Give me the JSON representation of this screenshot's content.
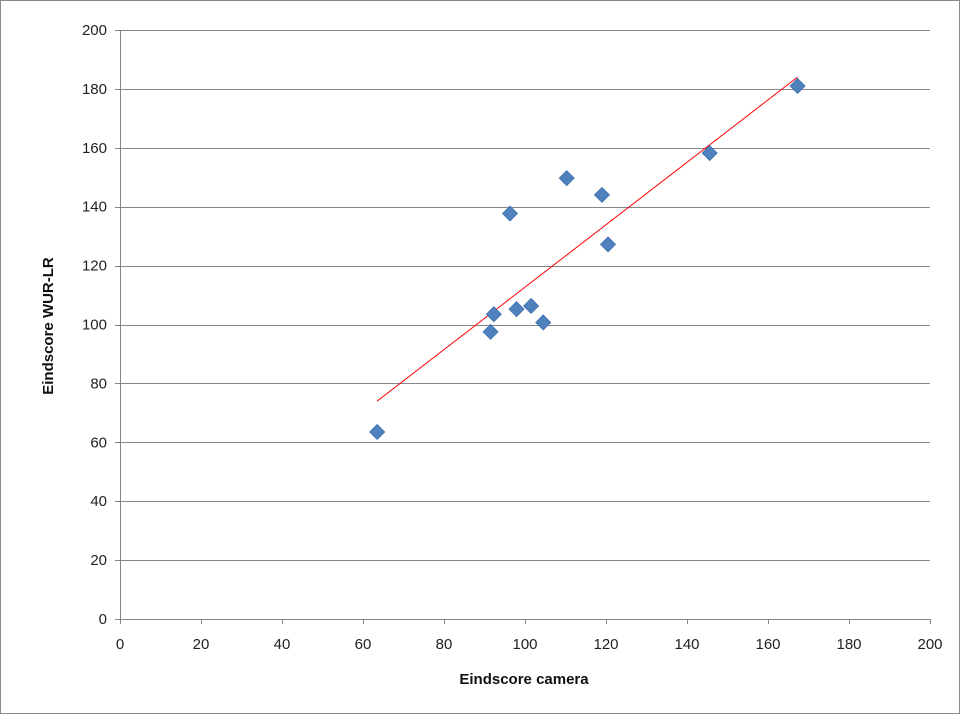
{
  "chart_data": {
    "type": "scatter",
    "title": "",
    "xlabel": "Eindscore camera",
    "ylabel": "Eindscore WUR-LR",
    "xlim": [
      0,
      200
    ],
    "ylim": [
      0,
      200
    ],
    "xticks": [
      0,
      20,
      40,
      60,
      80,
      100,
      120,
      140,
      160,
      180,
      200
    ],
    "yticks": [
      0,
      20,
      40,
      60,
      80,
      100,
      120,
      140,
      160,
      180,
      200
    ],
    "grid": "horizontal",
    "legend": "none",
    "series": [
      {
        "marker": "diamond",
        "color": "#4f81bd",
        "points": [
          {
            "x": 63.5,
            "y": 63.5
          },
          {
            "x": 91.5,
            "y": 97.5
          },
          {
            "x": 92.3,
            "y": 103.5
          },
          {
            "x": 96.3,
            "y": 137.7
          },
          {
            "x": 97.9,
            "y": 105.2
          },
          {
            "x": 101.5,
            "y": 106.3
          },
          {
            "x": 104.5,
            "y": 100.7
          },
          {
            "x": 110.3,
            "y": 149.7
          },
          {
            "x": 119.0,
            "y": 144.0
          },
          {
            "x": 120.5,
            "y": 127.2
          },
          {
            "x": 145.6,
            "y": 158.2
          },
          {
            "x": 167.3,
            "y": 181.0
          }
        ]
      }
    ],
    "trendline": {
      "type": "linear",
      "color": "#ff0000",
      "from": {
        "x": 63.5,
        "y": 74.0
      },
      "to": {
        "x": 167.3,
        "y": 184.0
      }
    }
  }
}
